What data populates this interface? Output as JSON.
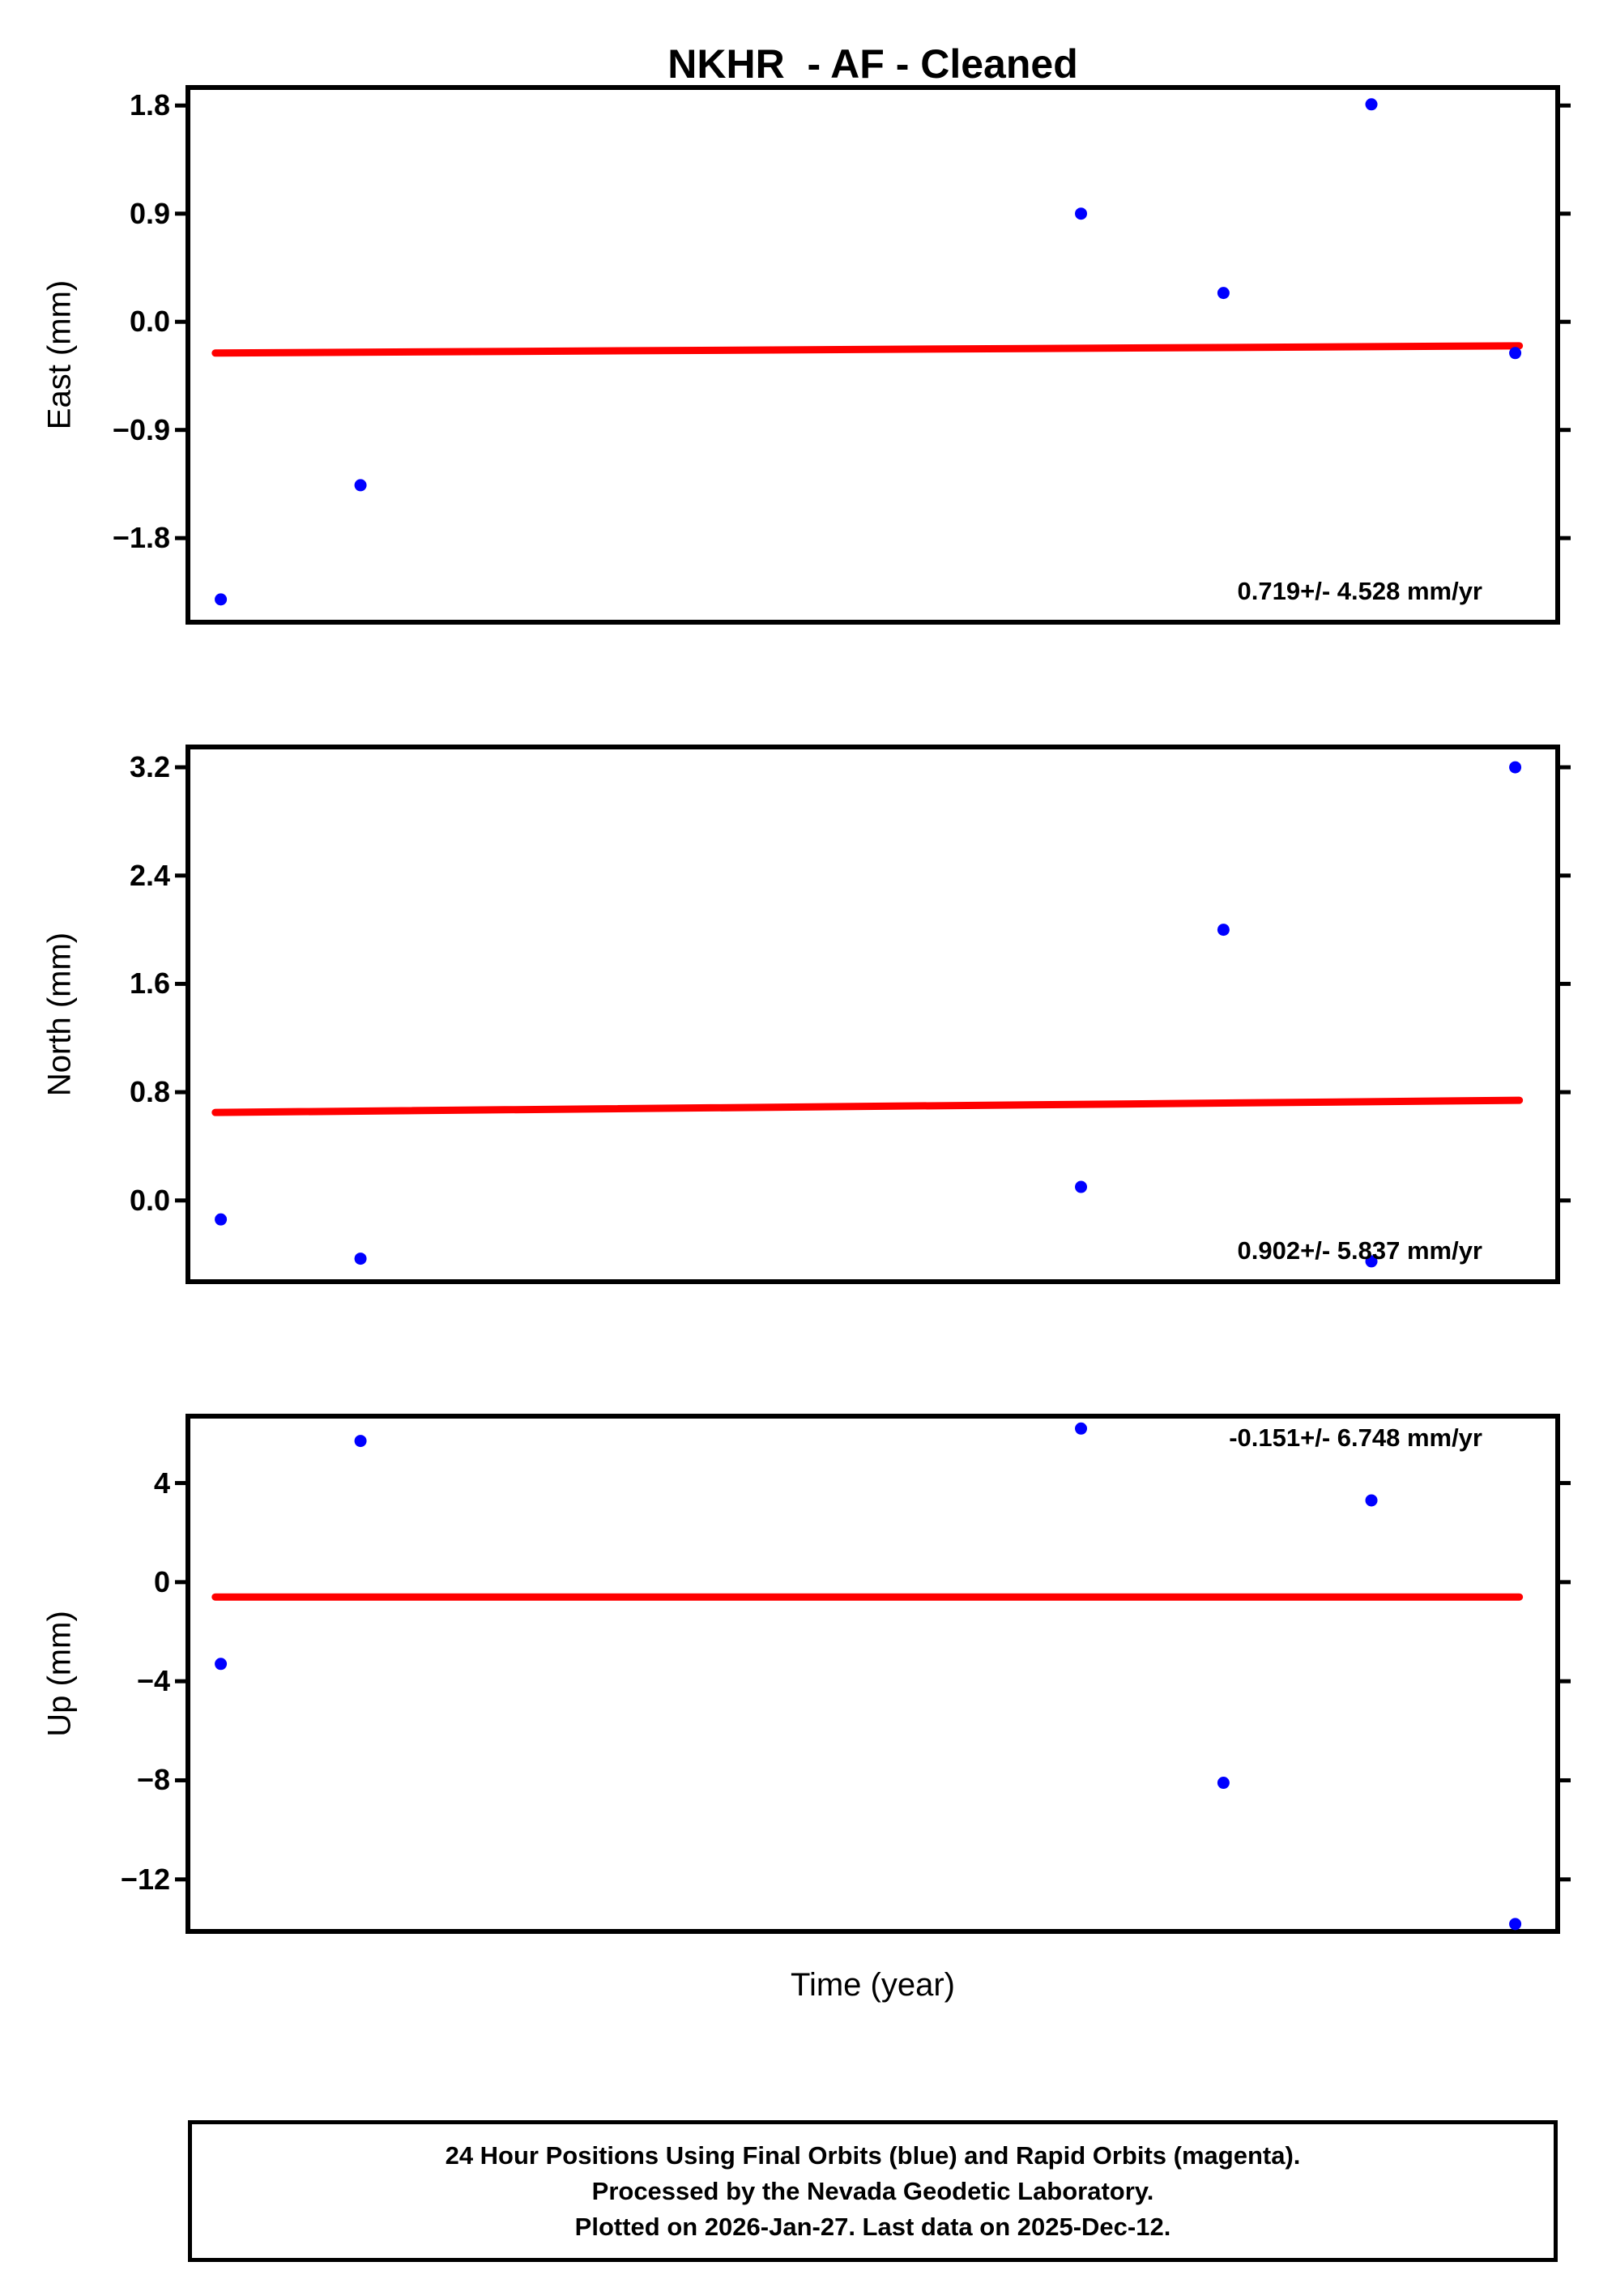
{
  "title": "NKHR  - AF - Cleaned",
  "xlabel": "Time (year)",
  "footer": {
    "line1": "24 Hour Positions Using Final Orbits (blue) and Rapid Orbits (magenta).",
    "line2": "Processed by the Nevada Geodetic Laboratory.",
    "line3": "Plotted on 2026-Jan-27. Last data on 2025-Dec-12."
  },
  "colors": {
    "points": "#0000ff",
    "trend": "#ff0000",
    "frame": "#000000",
    "background": "#ffffff"
  },
  "chart_data": [
    {
      "type": "scatter",
      "ylabel": "East (mm)",
      "ylim": [
        -2.5,
        1.95
      ],
      "grid": false,
      "legend": false,
      "yticks": [
        {
          "value": 1.8,
          "label": "1.8"
        },
        {
          "value": 0.9,
          "label": "0.9"
        },
        {
          "value": 0.0,
          "label": "0.0"
        },
        {
          "value": -0.9,
          "label": "−0.9"
        },
        {
          "value": -1.8,
          "label": "−1.8"
        }
      ],
      "points": [
        {
          "x_rel": 0.024,
          "y": -2.31
        },
        {
          "x_rel": 0.126,
          "y": -1.36
        },
        {
          "x_rel": 0.652,
          "y": 0.9
        },
        {
          "x_rel": 0.756,
          "y": 0.24
        },
        {
          "x_rel": 0.864,
          "y": 1.81
        },
        {
          "x_rel": 0.969,
          "y": -0.26
        }
      ],
      "trend_line": {
        "x_rel_start": 0.02,
        "x_rel_end": 0.972,
        "y_start": -0.26,
        "y_end": -0.2
      },
      "rate_label": "0.719+/- 4.528 mm/yr",
      "rate_label_pos": "bottom-right"
    },
    {
      "type": "scatter",
      "ylabel": "North (mm)",
      "ylim": [
        -0.6,
        3.35
      ],
      "grid": false,
      "legend": false,
      "yticks": [
        {
          "value": 3.2,
          "label": "3.2"
        },
        {
          "value": 2.4,
          "label": "2.4"
        },
        {
          "value": 1.6,
          "label": "1.6"
        },
        {
          "value": 0.8,
          "label": "0.8"
        },
        {
          "value": 0.0,
          "label": "0.0"
        }
      ],
      "points": [
        {
          "x_rel": 0.024,
          "y": -0.14
        },
        {
          "x_rel": 0.126,
          "y": -0.43
        },
        {
          "x_rel": 0.652,
          "y": 0.1
        },
        {
          "x_rel": 0.756,
          "y": 2.0
        },
        {
          "x_rel": 0.864,
          "y": -0.45
        },
        {
          "x_rel": 0.969,
          "y": 3.2
        }
      ],
      "trend_line": {
        "x_rel_start": 0.02,
        "x_rel_end": 0.972,
        "y_start": 0.65,
        "y_end": 0.74
      },
      "rate_label": "0.902+/- 5.837 mm/yr",
      "rate_label_pos": "bottom-right"
    },
    {
      "type": "scatter",
      "ylabel": "Up (mm)",
      "ylim": [
        -14.1,
        6.7
      ],
      "grid": false,
      "legend": false,
      "yticks": [
        {
          "value": 4,
          "label": "4"
        },
        {
          "value": 0,
          "label": "0"
        },
        {
          "value": -4,
          "label": "−4"
        },
        {
          "value": -8,
          "label": "−8"
        },
        {
          "value": -12,
          "label": "−12"
        }
      ],
      "points": [
        {
          "x_rel": 0.024,
          "y": -3.3
        },
        {
          "x_rel": 0.126,
          "y": 5.7
        },
        {
          "x_rel": 0.652,
          "y": 6.2
        },
        {
          "x_rel": 0.756,
          "y": -8.1
        },
        {
          "x_rel": 0.864,
          "y": 3.3
        },
        {
          "x_rel": 0.969,
          "y": -13.8
        }
      ],
      "trend_line": {
        "x_rel_start": 0.02,
        "x_rel_end": 0.972,
        "y_start": -0.6,
        "y_end": -0.6
      },
      "rate_label": "-0.151+/- 6.748 mm/yr",
      "rate_label_pos": "top-right"
    }
  ]
}
